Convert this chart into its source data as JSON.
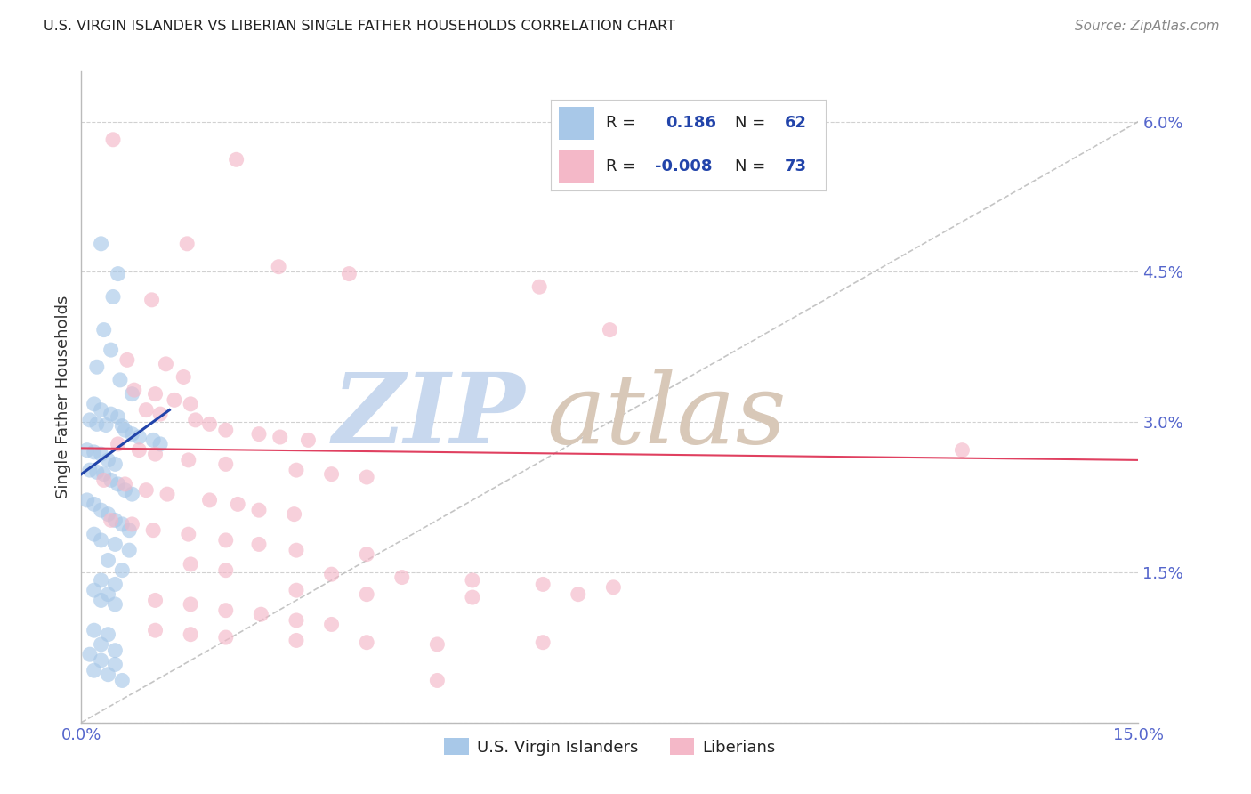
{
  "title": "U.S. VIRGIN ISLANDER VS LIBERIAN SINGLE FATHER HOUSEHOLDS CORRELATION CHART",
  "source": "Source: ZipAtlas.com",
  "ylabel": "Single Father Households",
  "xlim": [
    0.0,
    15.0
  ],
  "ylim": [
    0.0,
    6.5
  ],
  "yticks": [
    0.0,
    1.5,
    3.0,
    4.5,
    6.0
  ],
  "ytick_labels": [
    "",
    "1.5%",
    "3.0%",
    "4.5%",
    "6.0%"
  ],
  "xticks": [
    0.0,
    3.75,
    7.5,
    11.25,
    15.0
  ],
  "legend_blue_label": "U.S. Virgin Islanders",
  "legend_pink_label": "Liberians",
  "R_blue": "0.186",
  "N_blue": "62",
  "R_pink": "-0.008",
  "N_pink": "73",
  "blue_color": "#a8c8e8",
  "pink_color": "#f4b8c8",
  "blue_line_color": "#2244aa",
  "pink_line_color": "#e04060",
  "diagonal_line_color": "#bbbbbb",
  "watermark_zip_color": "#c8d8ee",
  "watermark_atlas_color": "#d8c8b8",
  "background_color": "#ffffff",
  "blue_scatter": [
    [
      0.28,
      4.78
    ],
    [
      0.52,
      4.48
    ],
    [
      0.45,
      4.25
    ],
    [
      0.32,
      3.92
    ],
    [
      0.42,
      3.72
    ],
    [
      0.22,
      3.55
    ],
    [
      0.55,
      3.42
    ],
    [
      0.72,
      3.28
    ],
    [
      0.18,
      3.18
    ],
    [
      0.28,
      3.12
    ],
    [
      0.42,
      3.08
    ],
    [
      0.52,
      3.05
    ],
    [
      0.12,
      3.02
    ],
    [
      0.22,
      2.98
    ],
    [
      0.35,
      2.97
    ],
    [
      0.58,
      2.96
    ],
    [
      0.62,
      2.92
    ],
    [
      0.72,
      2.88
    ],
    [
      0.82,
      2.85
    ],
    [
      1.02,
      2.82
    ],
    [
      1.12,
      2.78
    ],
    [
      0.08,
      2.72
    ],
    [
      0.18,
      2.7
    ],
    [
      0.28,
      2.68
    ],
    [
      0.38,
      2.62
    ],
    [
      0.48,
      2.58
    ],
    [
      0.12,
      2.52
    ],
    [
      0.22,
      2.5
    ],
    [
      0.32,
      2.48
    ],
    [
      0.42,
      2.42
    ],
    [
      0.52,
      2.38
    ],
    [
      0.62,
      2.32
    ],
    [
      0.72,
      2.28
    ],
    [
      0.08,
      2.22
    ],
    [
      0.18,
      2.18
    ],
    [
      0.28,
      2.12
    ],
    [
      0.38,
      2.08
    ],
    [
      0.48,
      2.02
    ],
    [
      0.58,
      1.98
    ],
    [
      0.68,
      1.92
    ],
    [
      0.18,
      1.88
    ],
    [
      0.28,
      1.82
    ],
    [
      0.48,
      1.78
    ],
    [
      0.68,
      1.72
    ],
    [
      0.38,
      1.62
    ],
    [
      0.58,
      1.52
    ],
    [
      0.28,
      1.42
    ],
    [
      0.48,
      1.38
    ],
    [
      0.18,
      1.32
    ],
    [
      0.38,
      1.28
    ],
    [
      0.28,
      1.22
    ],
    [
      0.48,
      1.18
    ],
    [
      0.18,
      0.92
    ],
    [
      0.38,
      0.88
    ],
    [
      0.28,
      0.78
    ],
    [
      0.48,
      0.72
    ],
    [
      0.12,
      0.68
    ],
    [
      0.28,
      0.62
    ],
    [
      0.48,
      0.58
    ],
    [
      0.18,
      0.52
    ],
    [
      0.38,
      0.48
    ],
    [
      0.58,
      0.42
    ]
  ],
  "pink_scatter": [
    [
      0.45,
      5.82
    ],
    [
      2.2,
      5.62
    ],
    [
      1.5,
      4.78
    ],
    [
      2.8,
      4.55
    ],
    [
      3.8,
      4.48
    ],
    [
      1.0,
      4.22
    ],
    [
      6.5,
      4.35
    ],
    [
      7.5,
      3.92
    ],
    [
      0.65,
      3.62
    ],
    [
      1.2,
      3.58
    ],
    [
      1.45,
      3.45
    ],
    [
      0.75,
      3.32
    ],
    [
      1.05,
      3.28
    ],
    [
      1.32,
      3.22
    ],
    [
      1.55,
      3.18
    ],
    [
      0.92,
      3.12
    ],
    [
      1.12,
      3.08
    ],
    [
      1.62,
      3.02
    ],
    [
      1.82,
      2.98
    ],
    [
      2.05,
      2.92
    ],
    [
      2.52,
      2.88
    ],
    [
      2.82,
      2.85
    ],
    [
      3.22,
      2.82
    ],
    [
      0.52,
      2.78
    ],
    [
      0.82,
      2.72
    ],
    [
      1.05,
      2.68
    ],
    [
      1.52,
      2.62
    ],
    [
      2.05,
      2.58
    ],
    [
      3.05,
      2.52
    ],
    [
      3.55,
      2.48
    ],
    [
      4.05,
      2.45
    ],
    [
      0.32,
      2.42
    ],
    [
      0.62,
      2.38
    ],
    [
      0.92,
      2.32
    ],
    [
      1.22,
      2.28
    ],
    [
      1.82,
      2.22
    ],
    [
      2.22,
      2.18
    ],
    [
      2.52,
      2.12
    ],
    [
      3.02,
      2.08
    ],
    [
      0.42,
      2.02
    ],
    [
      0.72,
      1.98
    ],
    [
      1.02,
      1.92
    ],
    [
      1.52,
      1.88
    ],
    [
      2.05,
      1.82
    ],
    [
      2.52,
      1.78
    ],
    [
      3.05,
      1.72
    ],
    [
      4.05,
      1.68
    ],
    [
      1.55,
      1.58
    ],
    [
      2.05,
      1.52
    ],
    [
      3.55,
      1.48
    ],
    [
      4.55,
      1.45
    ],
    [
      5.55,
      1.42
    ],
    [
      6.55,
      1.38
    ],
    [
      3.05,
      1.32
    ],
    [
      4.05,
      1.28
    ],
    [
      5.55,
      1.25
    ],
    [
      1.05,
      1.22
    ],
    [
      1.55,
      1.18
    ],
    [
      2.05,
      1.12
    ],
    [
      2.55,
      1.08
    ],
    [
      3.05,
      1.02
    ],
    [
      3.55,
      0.98
    ],
    [
      1.05,
      0.92
    ],
    [
      1.55,
      0.88
    ],
    [
      2.05,
      0.85
    ],
    [
      3.05,
      0.82
    ],
    [
      4.05,
      0.8
    ],
    [
      5.05,
      0.78
    ],
    [
      7.05,
      1.28
    ],
    [
      12.5,
      2.72
    ],
    [
      5.05,
      0.42
    ],
    [
      7.55,
      1.35
    ],
    [
      6.55,
      0.8
    ]
  ]
}
